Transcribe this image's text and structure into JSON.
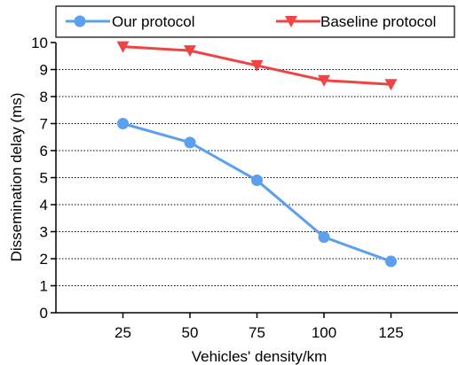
{
  "chart_data": {
    "type": "line",
    "xlabel": "Vehicles' density/km",
    "ylabel": "Dissemination delay (ms)",
    "x": [
      25,
      50,
      75,
      100,
      125
    ],
    "xlim": [
      0,
      150
    ],
    "ylim": [
      0,
      10
    ],
    "xticks": [
      "25",
      "50",
      "75",
      "100",
      "125"
    ],
    "yticks": [
      "0",
      "1",
      "2",
      "3",
      "4",
      "5",
      "6",
      "7",
      "8",
      "9",
      "10"
    ],
    "grid": "horizontal dotted",
    "legend": "top, above plot, boxed",
    "series": [
      {
        "name": "Our protocol",
        "color": "#5aa0ee",
        "marker": "circle",
        "values": [
          7.0,
          6.3,
          4.9,
          2.8,
          1.9
        ]
      },
      {
        "name": "Baseline protocol",
        "color": "#f04444",
        "marker": "triangle-down",
        "values": [
          9.85,
          9.7,
          9.15,
          8.6,
          8.45
        ]
      }
    ]
  }
}
